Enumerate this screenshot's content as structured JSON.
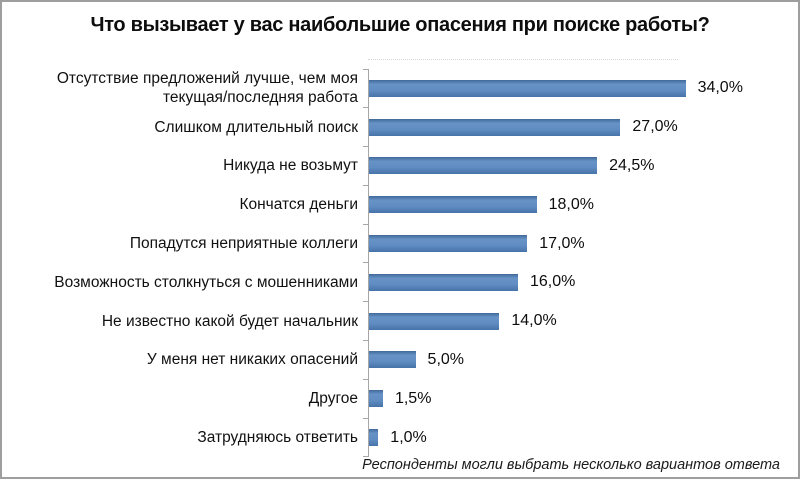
{
  "chart": {
    "title": "Что вызывает у вас наибольшие опасения при поиске работы?",
    "footnote": "Респонденты могли выбрать несколько вариантов ответа",
    "bar_color": "#4e80bc",
    "axis_color": "#a6a6a6",
    "text_color": "#0d0d0d"
  },
  "chart_data": {
    "type": "bar",
    "orientation": "horizontal",
    "title": "Что вызывает у вас наибольшие опасения при поиске работы?",
    "categories": [
      "Отсутствие предложений лучше, чем моя текущая/последняя работа",
      "Слишком длительный поиск",
      "Никуда не возьмут",
      "Кончатся деньги",
      "Попадутся неприятные коллеги",
      "Возможность столкнуться с мошенниками",
      "Не известно какой будет начальник",
      "У меня нет никаких опасений",
      "Другое",
      "Затрудняюсь ответить"
    ],
    "values": [
      34.0,
      27.0,
      24.5,
      18.0,
      17.0,
      16.0,
      14.0,
      5.0,
      1.5,
      1.0
    ],
    "value_labels": [
      "34,0%",
      "27,0%",
      "24,5%",
      "18,0%",
      "17,0%",
      "16,0%",
      "14,0%",
      "5,0%",
      "1,5%",
      "1,0%"
    ],
    "xlabel": "",
    "ylabel": "",
    "xlim": [
      0,
      45
    ],
    "grid": false,
    "legend": false,
    "annotation": "Респонденты могли выбрать несколько вариантов ответа"
  }
}
